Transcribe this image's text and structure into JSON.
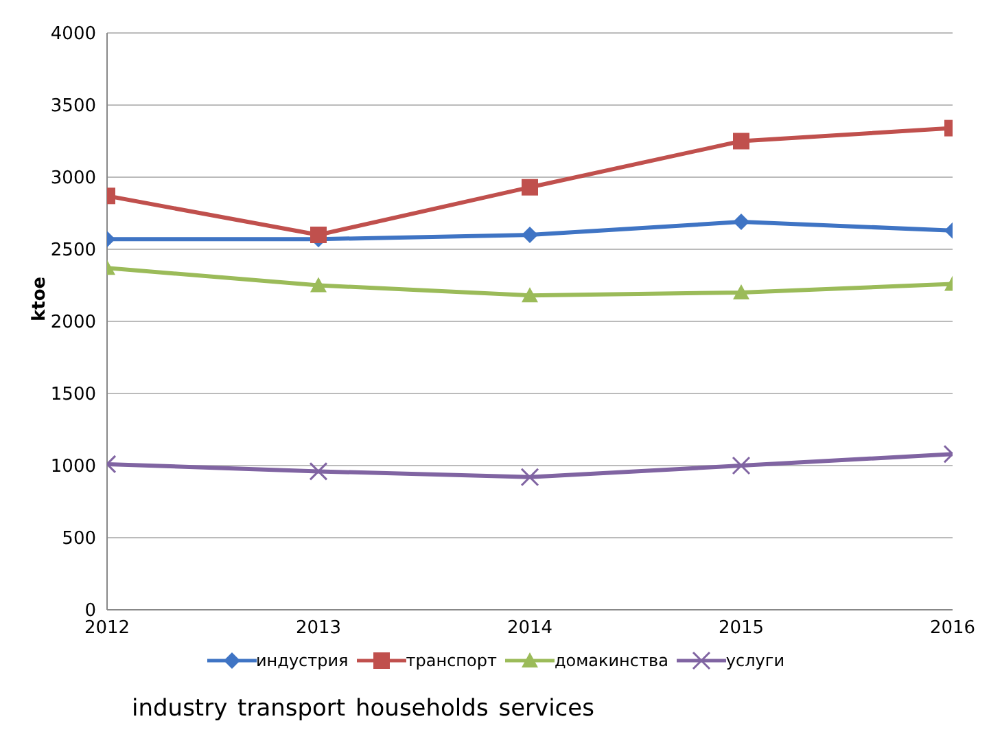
{
  "chart_data": {
    "type": "line",
    "ylabel": "ktoe",
    "x": [
      2012,
      2013,
      2014,
      2015,
      2016
    ],
    "xlim": [
      2012,
      2016
    ],
    "xticks": [
      2012,
      2013,
      2014,
      2015,
      2016
    ],
    "ylim": [
      0,
      4000
    ],
    "yticks": [
      0,
      500,
      1000,
      1500,
      2000,
      2500,
      3000,
      3500,
      4000
    ],
    "grid": "y",
    "legend": "bottom",
    "line_style": "solid",
    "series": [
      {
        "name": "индустрия",
        "color": "#3f74c4",
        "marker": "diamond",
        "values": [
          2570,
          2570,
          2600,
          2690,
          2630
        ]
      },
      {
        "name": "транспорт",
        "color": "#c0504d",
        "marker": "square",
        "values": [
          2870,
          2600,
          2930,
          3250,
          3340
        ]
      },
      {
        "name": "домакинства",
        "color": "#9bbb59",
        "marker": "triangle",
        "values": [
          2370,
          2250,
          2180,
          2200,
          2260
        ]
      },
      {
        "name": "услуги",
        "color": "#8064a2",
        "marker": "cross",
        "values": [
          1010,
          960,
          920,
          1000,
          1080
        ]
      }
    ],
    "annotations": [
      "industry transport households services"
    ]
  }
}
